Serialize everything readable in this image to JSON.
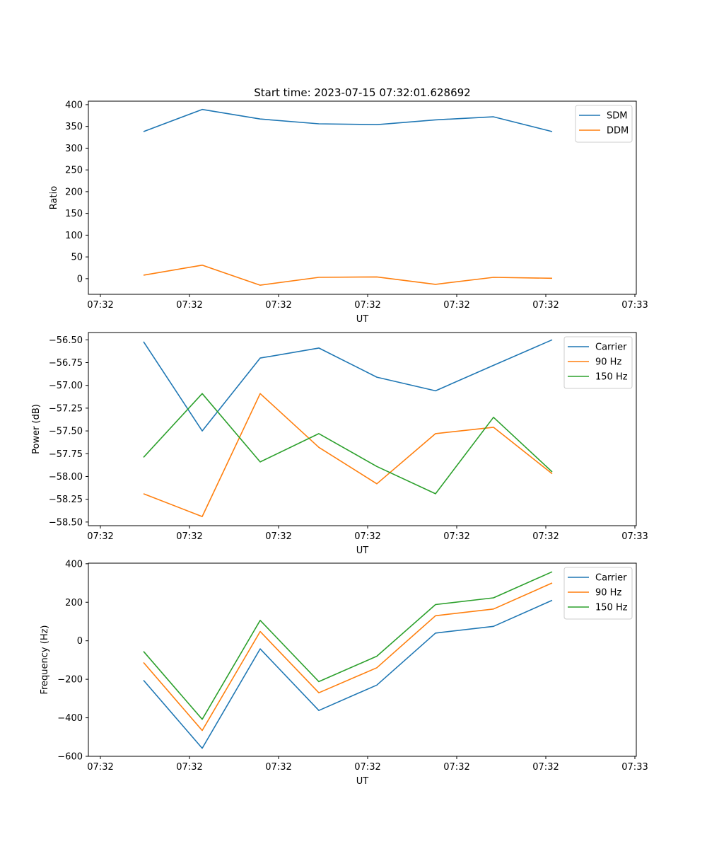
{
  "title": "Start time: 2023-07-15 07:32:01.628692",
  "chart_data": [
    {
      "type": "line",
      "id": "ratio",
      "xlabel": "UT",
      "ylabel": "Ratio",
      "xticks": [
        "07:32",
        "07:32",
        "07:32",
        "07:32",
        "07:32",
        "07:32",
        "07:33"
      ],
      "ylim": [
        -36,
        408
      ],
      "yticks": [
        "0",
        "50",
        "100",
        "150",
        "200",
        "250",
        "300",
        "350",
        "400"
      ],
      "legend_position": "top-right",
      "series": [
        {
          "name": "SDM",
          "color": "#1f77b4",
          "values": [
            338,
            389,
            367,
            356,
            354,
            365,
            372,
            338
          ]
        },
        {
          "name": "DDM",
          "color": "#ff7f0e",
          "values": [
            8,
            31,
            -15,
            3,
            4,
            -13,
            3,
            1
          ]
        }
      ]
    },
    {
      "type": "line",
      "id": "power",
      "xlabel": "UT",
      "ylabel": "Power (dB)",
      "xticks": [
        "07:32",
        "07:32",
        "07:32",
        "07:32",
        "07:32",
        "07:32",
        "07:33"
      ],
      "ylim": [
        -58.54,
        -56.42
      ],
      "yticks": [
        "−58.50",
        "−58.25",
        "−58.00",
        "−57.75",
        "−57.50",
        "−57.25",
        "−57.00",
        "−56.75",
        "−56.50"
      ],
      "legend_position": "top-right",
      "series": [
        {
          "name": "Carrier",
          "color": "#1f77b4",
          "values": [
            -56.52,
            -57.5,
            -56.7,
            -56.59,
            -56.91,
            -57.06,
            -56.78,
            -56.5
          ]
        },
        {
          "name": "90 Hz",
          "color": "#ff7f0e",
          "values": [
            -58.19,
            -58.44,
            -57.09,
            -57.68,
            -58.08,
            -57.53,
            -57.46,
            -57.97
          ]
        },
        {
          "name": "150 Hz",
          "color": "#2ca02c",
          "values": [
            -57.79,
            -57.09,
            -57.84,
            -57.53,
            -57.89,
            -58.19,
            -57.35,
            -57.95
          ]
        }
      ]
    },
    {
      "type": "line",
      "id": "frequency",
      "xlabel": "UT",
      "ylabel": "Frequency (Hz)",
      "xticks": [
        "07:32",
        "07:32",
        "07:32",
        "07:32",
        "07:32",
        "07:32",
        "07:33"
      ],
      "ylim": [
        -600,
        403
      ],
      "yticks": [
        "−600",
        "−400",
        "−200",
        "0",
        "200",
        "400"
      ],
      "legend_position": "top-right",
      "series": [
        {
          "name": "Carrier",
          "color": "#1f77b4",
          "values": [
            -205,
            -558,
            -42,
            -362,
            -230,
            40,
            75,
            210
          ]
        },
        {
          "name": "90 Hz",
          "color": "#ff7f0e",
          "values": [
            -113,
            -466,
            48,
            -270,
            -140,
            130,
            165,
            300
          ]
        },
        {
          "name": "150 Hz",
          "color": "#2ca02c",
          "values": [
            -55,
            -408,
            106,
            -212,
            -80,
            188,
            223,
            358
          ]
        }
      ]
    }
  ]
}
